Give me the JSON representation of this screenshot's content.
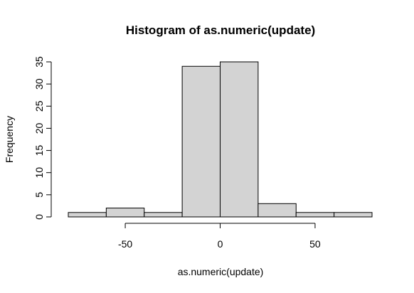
{
  "chart_data": {
    "type": "bar",
    "title": "Histogram of as.numeric(update)",
    "xlabel": "as.numeric(update)",
    "ylabel": "Frequency",
    "bins": [
      {
        "from": -80,
        "to": -60,
        "count": 1
      },
      {
        "from": -60,
        "to": -40,
        "count": 2
      },
      {
        "from": -40,
        "to": -20,
        "count": 1
      },
      {
        "from": -20,
        "to": 0,
        "count": 34
      },
      {
        "from": 0,
        "to": 20,
        "count": 35
      },
      {
        "from": 20,
        "to": 40,
        "count": 3
      },
      {
        "from": 40,
        "to": 60,
        "count": 1
      },
      {
        "from": 60,
        "to": 80,
        "count": 1
      }
    ],
    "xlim": [
      -80,
      80
    ],
    "ylim": [
      0,
      35
    ],
    "x_ticks": [
      -50,
      0,
      50
    ],
    "y_ticks": [
      0,
      5,
      10,
      15,
      20,
      25,
      30,
      35
    ],
    "bar_color": "#d3d3d3",
    "grid": false
  }
}
